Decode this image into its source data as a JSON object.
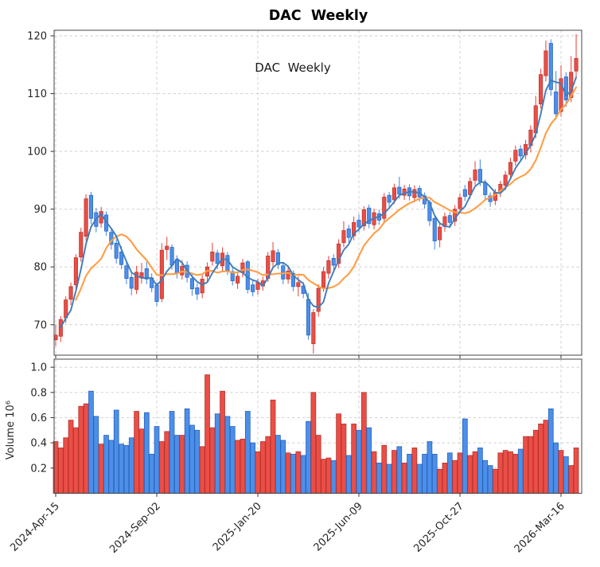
{
  "title": "DAC  Weekly",
  "annotation": "DAC  Weekly",
  "colors": {
    "up_fill": "#ea4e46",
    "up_edge": "#b5322b",
    "down_fill": "#4c8fe8",
    "down_edge": "#2a62bd",
    "ma_fast": "#3f7cba",
    "ma_slow": "#ff9d45",
    "grid": "#cdcdcd",
    "spine": "#454545",
    "tick_text": "#262626",
    "background": "#ffffff"
  },
  "price_axis": {
    "tick_labels": [
      "120",
      "110",
      "100",
      "90",
      "80",
      "70"
    ],
    "tick_values": [
      120,
      110,
      100,
      90,
      80,
      70
    ]
  },
  "volume_axis": {
    "tick_labels": [
      "1.0",
      "0.8",
      "0.6",
      "0.4",
      "0.2"
    ],
    "tick_values": [
      1.0,
      0.8,
      0.6,
      0.4,
      0.2
    ],
    "label": "Volume  10⁶"
  },
  "x_axis": {
    "ticks": [
      {
        "index": 0,
        "label": "2024-Apr-15"
      },
      {
        "index": 20,
        "label": "2024-Sep-02"
      },
      {
        "index": 40,
        "label": "2025-Jan-20"
      },
      {
        "index": 60,
        "label": "2025-Jun-09"
      },
      {
        "index": 80,
        "label": "2025-Oct-27"
      },
      {
        "index": 100,
        "label": "2026-Mar-16"
      }
    ]
  },
  "chart_data": {
    "type": "candlestick",
    "panels": [
      "price",
      "volume"
    ],
    "frequency": "weekly",
    "title": "DAC  Weekly",
    "ylabel_volume": "Volume  10⁶",
    "price_ylim": [
      64.5,
      121
    ],
    "volume_ylim": [
      0,
      1.06
    ],
    "volume_unit": "1e6",
    "grid": "dashed",
    "ma_fast_window": 4,
    "ma_slow_window": 10,
    "columns": [
      "open",
      "high",
      "low",
      "close",
      "volume_millions"
    ],
    "weeks": [
      [
        67.4,
        70.0,
        66.3,
        68.2,
        0.41
      ],
      [
        68.0,
        71.5,
        67.0,
        70.9,
        0.36
      ],
      [
        71.2,
        74.9,
        70.3,
        74.3,
        0.44
      ],
      [
        74.4,
        77.3,
        73.4,
        76.6,
        0.58
      ],
      [
        76.9,
        82.2,
        76.1,
        81.6,
        0.52
      ],
      [
        81.7,
        86.8,
        80.9,
        86.0,
        0.69
      ],
      [
        85.3,
        92.6,
        84.5,
        91.8,
        0.71
      ],
      [
        92.4,
        93.0,
        87.4,
        88.4,
        0.81
      ],
      [
        89.4,
        90.2,
        86.0,
        87.0,
        0.61
      ],
      [
        87.6,
        90.4,
        86.8,
        89.6,
        0.39
      ],
      [
        89.0,
        89.6,
        85.4,
        86.2,
        0.46
      ],
      [
        86.0,
        86.6,
        83.0,
        83.9,
        0.42
      ],
      [
        84.1,
        84.8,
        80.6,
        81.5,
        0.66
      ],
      [
        82.6,
        83.6,
        79.6,
        80.4,
        0.39
      ],
      [
        80.2,
        80.9,
        77.0,
        78.0,
        0.38
      ],
      [
        78.2,
        78.9,
        75.1,
        76.3,
        0.44
      ],
      [
        76.1,
        80.2,
        75.3,
        79.1,
        0.65
      ],
      [
        78.1,
        80.7,
        77.1,
        79.0,
        0.51
      ],
      [
        79.7,
        80.9,
        77.0,
        77.9,
        0.64
      ],
      [
        78.1,
        78.9,
        75.6,
        76.4,
        0.31
      ],
      [
        76.8,
        77.3,
        73.2,
        74.0,
        0.53
      ],
      [
        74.5,
        84.1,
        73.9,
        82.9,
        0.41
      ],
      [
        83.0,
        85.2,
        81.2,
        83.6,
        0.49
      ],
      [
        83.4,
        83.9,
        79.5,
        80.3,
        0.65
      ],
      [
        81.3,
        82.0,
        78.0,
        78.9,
        0.46
      ],
      [
        78.6,
        81.2,
        77.8,
        80.1,
        0.46
      ],
      [
        80.3,
        81.0,
        77.3,
        78.2,
        0.67
      ],
      [
        78.0,
        78.7,
        75.0,
        76.2,
        0.54
      ],
      [
        76.4,
        77.2,
        74.3,
        75.3,
        0.5
      ],
      [
        75.5,
        78.6,
        74.6,
        77.9,
        0.37
      ],
      [
        78.4,
        80.8,
        77.5,
        80.0,
        0.94
      ],
      [
        81.0,
        84.2,
        80.2,
        82.6,
        0.52
      ],
      [
        82.4,
        83.0,
        79.6,
        80.6,
        0.63
      ],
      [
        80.2,
        83.4,
        79.3,
        82.4,
        0.81
      ],
      [
        82.0,
        82.6,
        78.6,
        79.4,
        0.61
      ],
      [
        79.2,
        80.0,
        76.8,
        77.6,
        0.53
      ],
      [
        77.2,
        79.2,
        76.2,
        78.4,
        0.42
      ],
      [
        79.0,
        81.4,
        78.2,
        80.7,
        0.43
      ],
      [
        80.9,
        81.2,
        75.4,
        76.1,
        0.65
      ],
      [
        76.9,
        77.6,
        74.9,
        75.7,
        0.4
      ],
      [
        76.1,
        78.0,
        75.2,
        77.3,
        0.33
      ],
      [
        76.7,
        78.3,
        75.9,
        77.6,
        0.41
      ],
      [
        78.0,
        82.6,
        77.4,
        81.9,
        0.45
      ],
      [
        80.9,
        84.3,
        80.1,
        82.8,
        0.74
      ],
      [
        82.5,
        83.1,
        79.6,
        80.4,
        0.46
      ],
      [
        80.2,
        80.8,
        77.0,
        77.9,
        0.42
      ],
      [
        77.9,
        80.1,
        77.1,
        79.3,
        0.32
      ],
      [
        78.9,
        79.4,
        75.8,
        76.6,
        0.31
      ],
      [
        76.6,
        78.4,
        74.9,
        77.3,
        0.33
      ],
      [
        76.7,
        77.3,
        74.6,
        75.4,
        0.3
      ],
      [
        74.4,
        75.5,
        67.4,
        68.2,
        0.57
      ],
      [
        66.7,
        72.7,
        65.0,
        72.1,
        0.8
      ],
      [
        72.3,
        77.0,
        71.4,
        76.3,
        0.46
      ],
      [
        76.5,
        80.0,
        75.7,
        79.2,
        0.27
      ],
      [
        78.9,
        81.9,
        78.0,
        81.1,
        0.28
      ],
      [
        81.5,
        82.2,
        79.4,
        80.3,
        0.26
      ],
      [
        80.6,
        84.8,
        79.8,
        84.0,
        0.63
      ],
      [
        84.2,
        87.9,
        83.4,
        86.3,
        0.55
      ],
      [
        86.6,
        87.3,
        84.2,
        85.1,
        0.3
      ],
      [
        85.4,
        88.7,
        84.6,
        87.7,
        0.55
      ],
      [
        88.1,
        89.1,
        86.0,
        86.9,
        0.5
      ],
      [
        87.1,
        90.5,
        86.3,
        89.9,
        0.8
      ],
      [
        90.2,
        90.8,
        86.7,
        87.5,
        0.52
      ],
      [
        87.3,
        90.1,
        86.5,
        89.4,
        0.33
      ],
      [
        89.2,
        89.9,
        87.3,
        88.1,
        0.24
      ],
      [
        88.4,
        92.8,
        87.6,
        92.1,
        0.38
      ],
      [
        92.4,
        93.0,
        90.4,
        91.2,
        0.23
      ],
      [
        91.6,
        94.4,
        90.9,
        93.7,
        0.34
      ],
      [
        93.8,
        95.6,
        91.8,
        92.6,
        0.37
      ],
      [
        92.4,
        94.2,
        91.6,
        93.5,
        0.24
      ],
      [
        93.7,
        94.3,
        91.5,
        92.3,
        0.31
      ],
      [
        92.0,
        94.1,
        91.2,
        93.4,
        0.36
      ],
      [
        93.6,
        94.1,
        91.3,
        92.1,
        0.23
      ],
      [
        92.3,
        92.9,
        90.1,
        90.9,
        0.31
      ],
      [
        91.2,
        91.6,
        87.1,
        88.0,
        0.41
      ],
      [
        88.4,
        88.9,
        83.0,
        84.5,
        0.31
      ],
      [
        84.7,
        87.5,
        83.4,
        86.9,
        0.19
      ],
      [
        87.0,
        89.4,
        86.1,
        88.7,
        0.24
      ],
      [
        88.9,
        89.5,
        86.7,
        87.7,
        0.32
      ],
      [
        87.9,
        90.7,
        87.1,
        90.0,
        0.26
      ],
      [
        90.1,
        92.7,
        89.3,
        92.0,
        0.32
      ],
      [
        93.4,
        94.2,
        91.4,
        92.2,
        0.59
      ],
      [
        92.5,
        95.5,
        91.8,
        94.8,
        0.3
      ],
      [
        95.0,
        98.3,
        94.2,
        96.8,
        0.33
      ],
      [
        96.9,
        98.6,
        94.0,
        94.8,
        0.36
      ],
      [
        94.5,
        95.1,
        91.5,
        92.5,
        0.26
      ],
      [
        92.3,
        92.9,
        90.4,
        91.3,
        0.22
      ],
      [
        91.5,
        93.5,
        90.7,
        92.9,
        0.19
      ],
      [
        93.0,
        94.9,
        92.1,
        94.3,
        0.32
      ],
      [
        94.1,
        96.6,
        93.3,
        95.9,
        0.34
      ],
      [
        96.0,
        98.9,
        95.1,
        98.1,
        0.33
      ],
      [
        98.3,
        101.0,
        97.5,
        100.2,
        0.31
      ],
      [
        100.4,
        101.1,
        98.4,
        99.2,
        0.35
      ],
      [
        99.4,
        102.0,
        98.6,
        101.2,
        0.45
      ],
      [
        101.0,
        104.5,
        99.8,
        103.7,
        0.45
      ],
      [
        103.2,
        109.6,
        102.3,
        107.9,
        0.5
      ],
      [
        108.2,
        114.3,
        107.4,
        113.3,
        0.55
      ],
      [
        113.1,
        119.2,
        112.1,
        117.4,
        0.58
      ],
      [
        118.7,
        119.4,
        109.6,
        110.7,
        0.67
      ],
      [
        110.3,
        113.9,
        105.5,
        106.5,
        0.4
      ],
      [
        106.9,
        114.9,
        106.0,
        112.6,
        0.34
      ],
      [
        112.9,
        113.7,
        107.7,
        108.9,
        0.29
      ],
      [
        109.3,
        116.5,
        108.5,
        113.7,
        0.22
      ],
      [
        113.9,
        120.3,
        112.5,
        116.1,
        0.36
      ]
    ]
  }
}
